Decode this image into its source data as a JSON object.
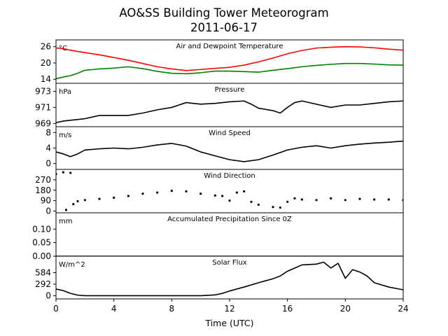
{
  "figure": {
    "title_line1": "AO&SS Building Tower Meteorogram",
    "title_line2": "2011-06-17",
    "xlabel": "Time (UTC)",
    "xlim": [
      0,
      24
    ],
    "xticks": [
      0,
      4,
      8,
      12,
      16,
      20,
      24
    ]
  },
  "colors": {
    "temperature": "#ff0000",
    "dewpoint": "#008000",
    "line": "#000000"
  },
  "chart_data": [
    {
      "type": "line",
      "title": "Air and Dewpoint Temperature",
      "unit": "°C",
      "ylim": [
        12.5,
        28.5
      ],
      "yticks": [
        14,
        20,
        26
      ],
      "series": [
        {
          "color_key": "temperature",
          "x": [
            0,
            0.5,
            1,
            2,
            3,
            4,
            5,
            6,
            7,
            8,
            9,
            10,
            11,
            12,
            13,
            14,
            15,
            16,
            17,
            18,
            19,
            20,
            21,
            22,
            23,
            24
          ],
          "values": [
            25.5,
            25.3,
            24.7,
            23.8,
            23.0,
            22.0,
            21.0,
            19.8,
            18.6,
            17.8,
            17.2,
            17.6,
            18.0,
            18.4,
            19.2,
            20.4,
            21.8,
            23.4,
            24.6,
            25.5,
            25.8,
            26.0,
            25.9,
            25.6,
            25.1,
            24.7
          ]
        },
        {
          "color_key": "dewpoint",
          "x": [
            0,
            0.5,
            1,
            1.5,
            2,
            3,
            4,
            5,
            6,
            7,
            8,
            9,
            10,
            11,
            12,
            13,
            14,
            15,
            16,
            17,
            18,
            19,
            20,
            21,
            22,
            23,
            24
          ],
          "values": [
            14.2,
            14.8,
            15.3,
            16.2,
            17.3,
            17.8,
            18.1,
            18.6,
            17.9,
            16.9,
            16.2,
            16.0,
            16.4,
            17.0,
            17.0,
            16.8,
            16.6,
            17.3,
            17.9,
            18.6,
            19.1,
            19.5,
            19.8,
            19.8,
            19.6,
            19.3,
            19.2
          ]
        }
      ]
    },
    {
      "type": "line",
      "title": "Pressure",
      "unit": "hPa",
      "ylim": [
        968.6,
        974.0
      ],
      "yticks": [
        969,
        971,
        973
      ],
      "series": [
        {
          "color_key": "line",
          "x": [
            0,
            0.5,
            1,
            2,
            3,
            4,
            5,
            6,
            7,
            8,
            9,
            10,
            11,
            12,
            13,
            13.5,
            14,
            15,
            15.5,
            16,
            16.5,
            17,
            18,
            19,
            20,
            21,
            22,
            23,
            24
          ],
          "values": [
            969.1,
            969.3,
            969.4,
            969.6,
            970.0,
            970.0,
            970.0,
            970.3,
            970.7,
            971.0,
            971.6,
            971.4,
            971.5,
            971.7,
            971.8,
            971.4,
            970.9,
            970.6,
            970.3,
            971.0,
            971.6,
            971.8,
            971.4,
            971.0,
            971.3,
            971.3,
            971.5,
            971.7,
            971.8
          ]
        }
      ]
    },
    {
      "type": "line",
      "title": "Wind Speed",
      "unit": "m/s",
      "ylim": [
        -1.5,
        9.5
      ],
      "yticks": [
        0,
        4,
        8
      ],
      "series": [
        {
          "color_key": "line",
          "x": [
            0,
            0.5,
            1,
            1.5,
            2,
            3,
            4,
            5,
            6,
            7,
            8,
            9,
            10,
            11,
            12,
            13,
            14,
            15,
            16,
            17,
            18,
            19,
            20,
            21,
            22,
            23,
            24
          ],
          "values": [
            3.0,
            2.5,
            1.8,
            2.5,
            3.5,
            3.8,
            4.0,
            3.8,
            4.2,
            4.8,
            5.2,
            4.5,
            3.0,
            2.0,
            1.0,
            0.5,
            1.0,
            2.2,
            3.5,
            4.2,
            4.6,
            4.0,
            4.6,
            5.0,
            5.3,
            5.5,
            5.8
          ]
        }
      ]
    },
    {
      "type": "scatter",
      "title": "Wind Direction",
      "unit": "",
      "ylim": [
        -15,
        360
      ],
      "yticks": [
        0,
        90,
        180,
        270
      ],
      "series": [
        {
          "color_key": "line",
          "x": [
            0,
            0.5,
            0.7,
            1.0,
            1.2,
            1.5,
            2,
            3,
            4,
            5,
            6,
            7,
            8,
            9,
            10,
            11,
            11.5,
            12,
            12.5,
            13,
            13.5,
            14,
            15,
            15.5,
            16,
            16.5,
            17,
            18,
            19,
            20,
            21,
            22,
            23,
            24
          ],
          "values": [
            320,
            335,
            10,
            330,
            60,
            85,
            95,
            105,
            115,
            130,
            150,
            160,
            175,
            170,
            150,
            135,
            130,
            90,
            160,
            170,
            80,
            55,
            35,
            30,
            80,
            110,
            100,
            95,
            110,
            95,
            105,
            100,
            100,
            95
          ]
        }
      ]
    },
    {
      "type": "line",
      "title": "Accumulated Precipitation Since 0Z",
      "unit": "mm",
      "ylim": [
        0,
        0.16
      ],
      "yticks": [
        0.0,
        0.05,
        0.1
      ],
      "ytick_labels": [
        "0.00",
        "0.05",
        "0.10"
      ],
      "series": [
        {
          "color_key": "line",
          "x": [
            0,
            24
          ],
          "values": [
            0,
            0
          ]
        }
      ]
    },
    {
      "type": "line",
      "title": "Solar Flux",
      "unit": "W/m^2",
      "ylim": [
        -80,
        1000
      ],
      "yticks": [
        0,
        292,
        584
      ],
      "series": [
        {
          "color_key": "line",
          "x": [
            0,
            0.5,
            1,
            1.5,
            2,
            4,
            6,
            8,
            10,
            11,
            11.5,
            12,
            13,
            14,
            15,
            15.5,
            16,
            17,
            18,
            18.5,
            19,
            19.5,
            20,
            20.5,
            21,
            21.5,
            22,
            23,
            24
          ],
          "values": [
            170,
            130,
            60,
            15,
            0,
            0,
            0,
            0,
            0,
            20,
            60,
            120,
            220,
            330,
            430,
            500,
            620,
            780,
            800,
            850,
            700,
            820,
            440,
            660,
            600,
            500,
            330,
            220,
            150
          ]
        }
      ]
    }
  ]
}
